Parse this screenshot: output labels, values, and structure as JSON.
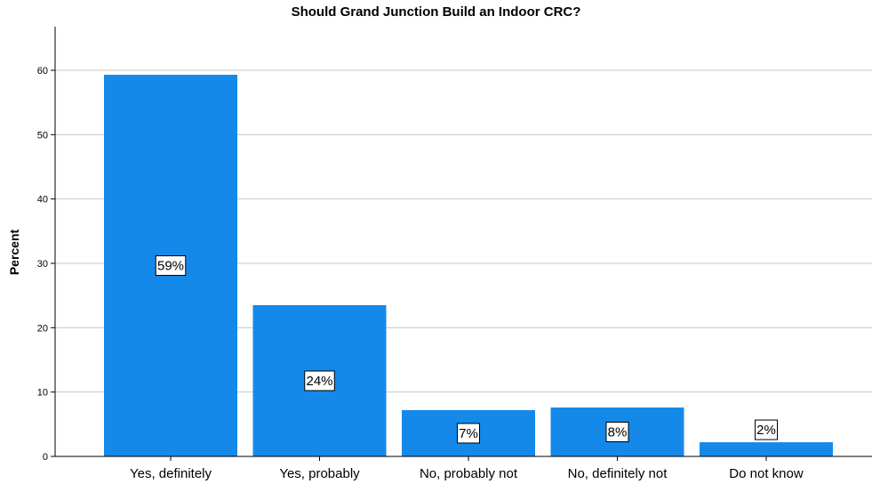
{
  "chart_data": {
    "type": "bar",
    "title": "Should Grand Junction Build an Indoor CRC?",
    "xlabel": "",
    "ylabel": "Percent",
    "categories": [
      "Yes, definitely",
      "Yes, probably",
      "No, probably not",
      "No, definitely not",
      "Do not know"
    ],
    "values": [
      59.3,
      23.5,
      7.2,
      7.6,
      2.2
    ],
    "data_labels": [
      "59%",
      "24%",
      "7%",
      "8%",
      "2%"
    ],
    "yticks": [
      0,
      10,
      20,
      30,
      40,
      50,
      60
    ],
    "ylim": [
      0,
      66
    ],
    "grid": true,
    "bar_color": "#1589e9"
  }
}
